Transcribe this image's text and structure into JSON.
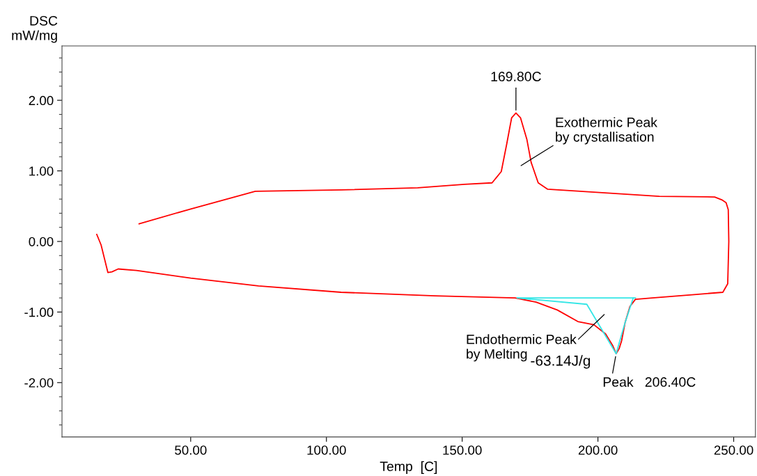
{
  "chart_data": {
    "type": "line",
    "xlabel": "Temp  [C]",
    "ylabel": "DSC\nmW/mg",
    "xlim": [
      2.6,
      258
    ],
    "ylim": [
      -2.77,
      2.77
    ],
    "xticks": [
      {
        "value": 50,
        "label": "50.00"
      },
      {
        "value": 100,
        "label": "100.00"
      },
      {
        "value": 150,
        "label": "150.00"
      },
      {
        "value": 200,
        "label": "200.00"
      },
      {
        "value": 250,
        "label": "250.00"
      }
    ],
    "yticks": [
      {
        "value": -2,
        "label": "-2.00"
      },
      {
        "value": -1,
        "label": "-1.00"
      },
      {
        "value": 0,
        "label": "0.00"
      },
      {
        "value": 1,
        "label": "1.00"
      },
      {
        "value": 2,
        "label": "2.00"
      }
    ],
    "grid": false,
    "marker": "none",
    "line_style": "solid",
    "series": [
      {
        "color": "#ff0000",
        "x": [
          15.4,
          17.0,
          19.5,
          21.0,
          23.3,
          30,
          50,
          75,
          105.4,
          140,
          169.5,
          177.2,
          185,
          192.6,
          198.5,
          202.8,
          205.5,
          206.7,
          207.8,
          208.7,
          210.0,
          211.8,
          213.8,
          220,
          236.2,
          246,
          247.8,
          248.2,
          248.0,
          247.2,
          245.6,
          243.0,
          222.6,
          181.5,
          178.0,
          175.4,
          173.8,
          171.5,
          169.8,
          168.2,
          166.4,
          164.4,
          161.0,
          150.8,
          133.6,
          105.4,
          73.8,
          50,
          31.0
        ],
        "values": [
          0.1,
          -0.05,
          -0.44,
          -0.43,
          -0.39,
          -0.41,
          -0.52,
          -0.63,
          -0.72,
          -0.77,
          -0.8,
          -0.86,
          -0.97,
          -1.135,
          -1.18,
          -1.31,
          -1.48,
          -1.59,
          -1.52,
          -1.41,
          -1.15,
          -0.92,
          -0.82,
          -0.8,
          -0.75,
          -0.72,
          -0.6,
          0.0,
          0.45,
          0.55,
          0.59,
          0.63,
          0.64,
          0.74,
          0.83,
          1.12,
          1.45,
          1.75,
          1.82,
          1.75,
          1.38,
          0.99,
          0.83,
          0.81,
          0.76,
          0.73,
          0.71,
          0.46,
          0.25
        ]
      },
      {
        "color": "#33e6e6",
        "x": [
          170.3,
          213.8
        ],
        "values": [
          -0.8,
          -0.8
        ]
      },
      {
        "color": "#33e6e6",
        "x": [
          170.3,
          195.9,
          206.7,
          210.0,
          213.0
        ],
        "values": [
          -0.8,
          -0.89,
          -1.59,
          -1.15,
          -0.8
        ]
      }
    ],
    "annotations": [
      {
        "text": "169.80C",
        "x": 169.8,
        "y": 1.82
      },
      "Exothermic Peak\nby crystallisation",
      "Endothermic Peak\nby Melting",
      "-63.14J/g",
      {
        "text": "Peak   206.40C",
        "x": 206.7,
        "y": -1.59
      }
    ]
  }
}
